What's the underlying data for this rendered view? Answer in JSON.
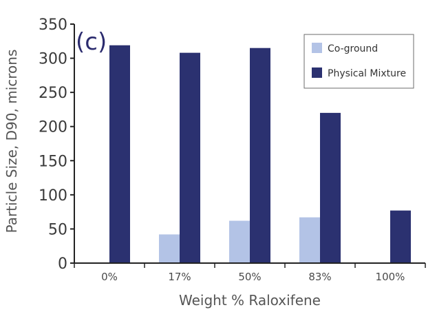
{
  "chart_data": {
    "type": "bar",
    "panel_label": "(c)",
    "categories": [
      "0%",
      "17%",
      "50%",
      "83%",
      "100%"
    ],
    "series": [
      {
        "name": "Co-ground",
        "color": "#b3c3e6",
        "values": [
          null,
          42,
          62,
          67,
          null
        ]
      },
      {
        "name": "Physical Mixture",
        "color": "#2b3170",
        "values": [
          319,
          308,
          315,
          220,
          77
        ]
      }
    ],
    "xlabel": "Weight % Raloxifene",
    "ylabel": "Particle Size, D90, microns",
    "ylim": [
      0,
      350
    ],
    "yticks": [
      0,
      50,
      100,
      150,
      200,
      250,
      300,
      350
    ],
    "grid": false,
    "legend_position": "top-right"
  }
}
